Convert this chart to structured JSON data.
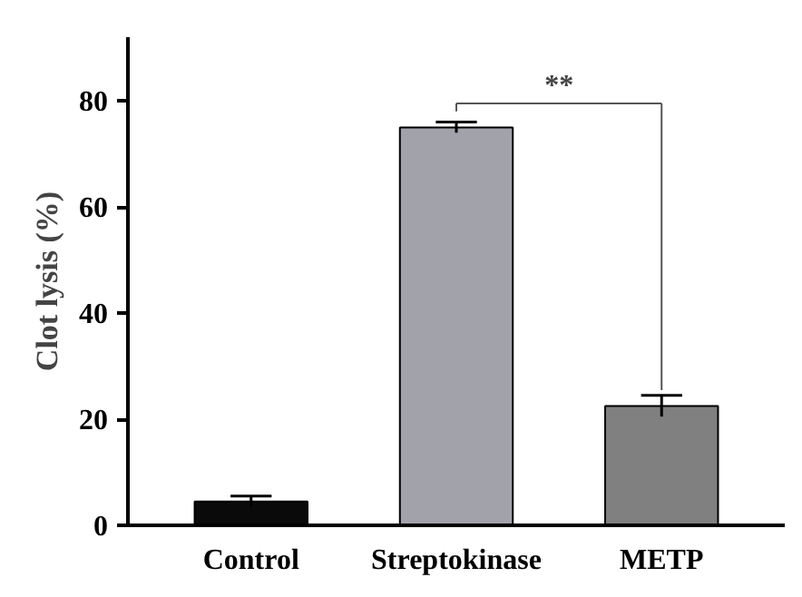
{
  "chart_data": {
    "type": "bar",
    "ylabel": "Clot lysis (%)",
    "categories": [
      "Control",
      "Streptokinase",
      "METP"
    ],
    "values": [
      4.5,
      75,
      22.5
    ],
    "errors": [
      1,
      1,
      2
    ],
    "colors": [
      "#0a0a0a",
      "#a2a2aa",
      "#808080"
    ],
    "ylim": [
      0,
      92
    ],
    "yticks": [
      0,
      20,
      40,
      60,
      80
    ],
    "grid": false,
    "annotations": [
      "**"
    ]
  }
}
